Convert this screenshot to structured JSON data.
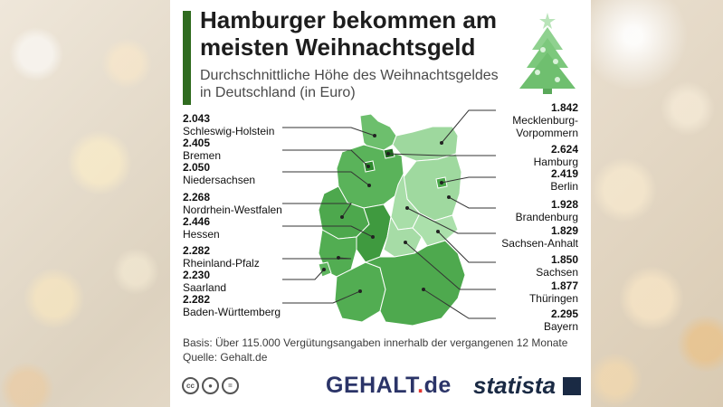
{
  "title": "Hamburger bekommen am meisten Weihnachtsgeld",
  "subtitle": "Durchschnittliche Höhe des Weihnachtsgeldes in Deutschland (in Euro)",
  "states_left": [
    {
      "value": "2.043",
      "name": "Schleswig-Holstein"
    },
    {
      "value": "2.405",
      "name": "Bremen"
    },
    {
      "value": "2.050",
      "name": "Niedersachsen"
    },
    {
      "value": "2.268",
      "name": "Nordrhein-Westfalen"
    },
    {
      "value": "2.446",
      "name": "Hessen"
    },
    {
      "value": "2.282",
      "name": "Rheinland-Pfalz"
    },
    {
      "value": "2.230",
      "name": "Saarland"
    },
    {
      "value": "2.282",
      "name": "Baden-Württemberg"
    }
  ],
  "states_right": [
    {
      "value": "1.842",
      "name": "Mecklenburg-Vorpommern"
    },
    {
      "value": "2.624",
      "name": "Hamburg"
    },
    {
      "value": "2.419",
      "name": "Berlin"
    },
    {
      "value": "1.928",
      "name": "Brandenburg"
    },
    {
      "value": "1.829",
      "name": "Sachsen-Anhalt"
    },
    {
      "value": "1.850",
      "name": "Sachsen"
    },
    {
      "value": "1.877",
      "name": "Thüringen"
    },
    {
      "value": "2.295",
      "name": "Bayern"
    }
  ],
  "footer": {
    "basis": "Basis: Über 115.000 Vergütungsangaben innerhalb der vergangenen 12 Monate",
    "source": "Quelle: Gehalt.de"
  },
  "logos": {
    "gehalt_main": "GEHALT",
    "gehalt_dot": ".",
    "gehalt_tld": "de",
    "statista": "statista",
    "cc_icons": [
      "cc-icon",
      "by-icon",
      "nd-icon"
    ]
  },
  "colors": {
    "accent": "#2f6b1f",
    "map_dark": "#3f9a3f",
    "map_mid": "#66bb66",
    "map_light": "#9fd99f"
  }
}
